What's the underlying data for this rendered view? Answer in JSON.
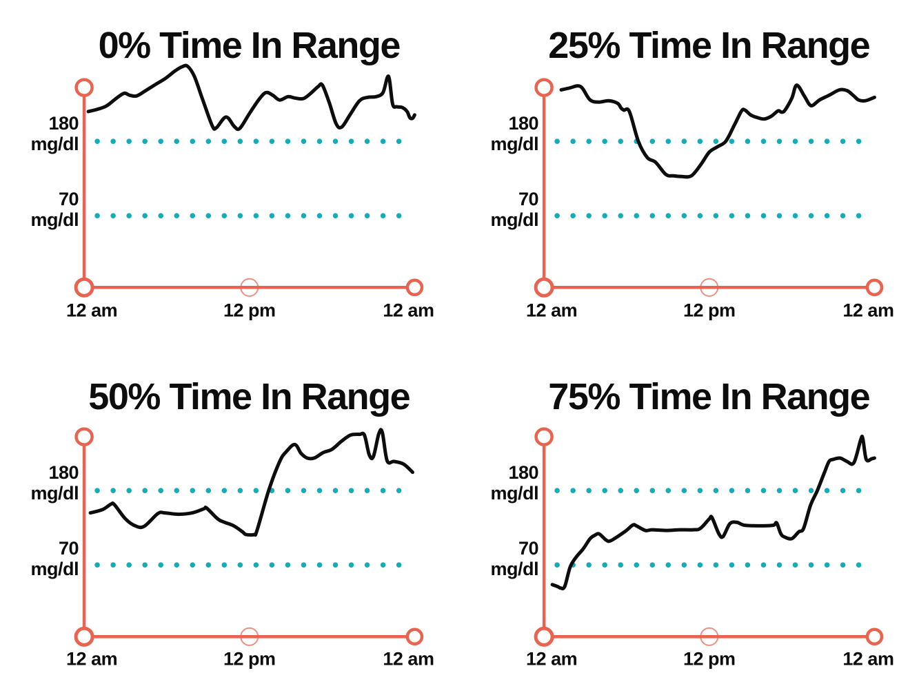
{
  "colors": {
    "background": "#FFFFFF",
    "axis": "#E96450",
    "threshold_dots": "#14ACB6",
    "glucose_line": "#0D0D0D",
    "text": "#0D0D0D"
  },
  "y_axis_unit": "mg/dl",
  "chart_data": [
    {
      "type": "line",
      "title": "0% Time In Range",
      "time_in_range_percent": 0,
      "x_tick_labels": [
        "12 am",
        "12 pm",
        "12 am"
      ],
      "x_range_hours": [
        0,
        24
      ],
      "y_threshold_labels": [
        {
          "value": "180",
          "unit": "mg/dl"
        },
        {
          "value": "70",
          "unit": "mg/dl"
        }
      ],
      "thresholds_mgdl": {
        "high": 180,
        "low": 70
      },
      "series": [
        {
          "name": "glucose",
          "unit": "mg/dl",
          "points": [
            [
              0.3,
              224
            ],
            [
              0.9,
              227
            ],
            [
              1.6,
              232
            ],
            [
              2.3,
              243
            ],
            [
              2.9,
              251
            ],
            [
              3.3,
              248
            ],
            [
              3.8,
              247
            ],
            [
              4.4,
              254
            ],
            [
              5.1,
              263
            ],
            [
              5.9,
              273
            ],
            [
              6.6,
              284
            ],
            [
              7.1,
              290
            ],
            [
              7.5,
              291
            ],
            [
              8.0,
              276
            ],
            [
              8.6,
              242
            ],
            [
              9.3,
              203
            ],
            [
              9.6,
              200
            ],
            [
              10.3,
              216
            ],
            [
              10.9,
              202
            ],
            [
              11.3,
              199
            ],
            [
              12.0,
              221
            ],
            [
              12.7,
              242
            ],
            [
              13.2,
              252
            ],
            [
              13.7,
              248
            ],
            [
              14.2,
              241
            ],
            [
              14.8,
              246
            ],
            [
              15.3,
              244
            ],
            [
              15.9,
              243
            ],
            [
              16.4,
              250
            ],
            [
              17.0,
              261
            ],
            [
              17.3,
              263
            ],
            [
              17.8,
              237
            ],
            [
              18.3,
              206
            ],
            [
              18.7,
              201
            ],
            [
              19.3,
              219
            ],
            [
              20.0,
              240
            ],
            [
              20.6,
              245
            ],
            [
              21.2,
              246
            ],
            [
              21.7,
              252
            ],
            [
              22.1,
              276
            ],
            [
              22.4,
              235
            ],
            [
              22.7,
              231
            ],
            [
              23.1,
              230
            ],
            [
              23.45,
              224
            ],
            [
              23.65,
              215
            ],
            [
              23.85,
              214
            ],
            [
              24,
              219
            ]
          ]
        }
      ]
    },
    {
      "type": "line",
      "title": "25% Time In Range",
      "time_in_range_percent": 25,
      "x_tick_labels": [
        "12 am",
        "12 pm",
        "12 am"
      ],
      "x_range_hours": [
        0,
        24
      ],
      "y_threshold_labels": [
        {
          "value": "180",
          "unit": "mg/dl"
        },
        {
          "value": "70",
          "unit": "mg/dl"
        }
      ],
      "thresholds_mgdl": {
        "high": 180,
        "low": 70
      },
      "series": [
        {
          "name": "glucose",
          "unit": "mg/dl",
          "points": [
            [
              1.25,
              256
            ],
            [
              1.9,
              259
            ],
            [
              2.45,
              262
            ],
            [
              2.8,
              258
            ],
            [
              3.35,
              241
            ],
            [
              4.0,
              238
            ],
            [
              4.7,
              240
            ],
            [
              5.35,
              236
            ],
            [
              5.6,
              229
            ],
            [
              5.8,
              226
            ],
            [
              6.2,
              224
            ],
            [
              6.85,
              180
            ],
            [
              7.5,
              156
            ],
            [
              8.1,
              149
            ],
            [
              8.85,
              131
            ],
            [
              9.4,
              129
            ],
            [
              10.0,
              128
            ],
            [
              10.7,
              129
            ],
            [
              11.4,
              146
            ],
            [
              12.0,
              164
            ],
            [
              12.6,
              172
            ],
            [
              13.2,
              180
            ],
            [
              13.8,
              203
            ],
            [
              14.35,
              225
            ],
            [
              14.6,
              226
            ],
            [
              15.0,
              219
            ],
            [
              15.5,
              215
            ],
            [
              16.0,
              213
            ],
            [
              16.5,
              217
            ],
            [
              17.0,
              225
            ],
            [
              17.25,
              223
            ],
            [
              17.5,
              226
            ],
            [
              18.0,
              244
            ],
            [
              18.35,
              263
            ],
            [
              18.9,
              247
            ],
            [
              19.25,
              235
            ],
            [
              19.5,
              233
            ],
            [
              20.0,
              241
            ],
            [
              20.7,
              248
            ],
            [
              21.45,
              256
            ],
            [
              22.0,
              255
            ],
            [
              22.5,
              247
            ],
            [
              22.85,
              241
            ],
            [
              23.35,
              240
            ],
            [
              24,
              245
            ]
          ]
        }
      ]
    },
    {
      "type": "line",
      "title": "50% Time In Range",
      "time_in_range_percent": 50,
      "x_tick_labels": [
        "12 am",
        "12 pm",
        "12 am"
      ],
      "x_range_hours": [
        0,
        24
      ],
      "y_threshold_labels": [
        {
          "value": "180",
          "unit": "mg/dl"
        },
        {
          "value": "70",
          "unit": "mg/dl"
        }
      ],
      "thresholds_mgdl": {
        "high": 180,
        "low": 70
      },
      "series": [
        {
          "name": "glucose",
          "unit": "mg/dl",
          "points": [
            [
              0.45,
              147
            ],
            [
              1.35,
              152
            ],
            [
              1.95,
              160
            ],
            [
              2.2,
              159
            ],
            [
              3.0,
              138
            ],
            [
              3.7,
              128
            ],
            [
              4.35,
              127
            ],
            [
              5.35,
              146
            ],
            [
              5.85,
              147
            ],
            [
              6.85,
              145
            ],
            [
              7.85,
              147
            ],
            [
              8.7,
              153
            ],
            [
              8.9,
              154
            ],
            [
              9.7,
              138
            ],
            [
              10.2,
              133
            ],
            [
              10.85,
              128
            ],
            [
              11.5,
              119
            ],
            [
              11.75,
              115
            ],
            [
              12.35,
              115
            ],
            [
              12.55,
              121
            ],
            [
              13.4,
              180
            ],
            [
              14.2,
              223
            ],
            [
              14.7,
              238
            ],
            [
              15.3,
              248
            ],
            [
              15.75,
              235
            ],
            [
              16.2,
              228
            ],
            [
              16.7,
              228
            ],
            [
              17.35,
              236
            ],
            [
              18.0,
              241
            ],
            [
              18.7,
              253
            ],
            [
              19.35,
              262
            ],
            [
              20.0,
              263
            ],
            [
              20.35,
              262
            ],
            [
              20.7,
              233
            ],
            [
              21.0,
              230
            ],
            [
              21.4,
              264
            ],
            [
              21.65,
              266
            ],
            [
              22.0,
              224
            ],
            [
              22.5,
              223
            ],
            [
              23.2,
              219
            ],
            [
              23.85,
              207
            ]
          ]
        }
      ]
    },
    {
      "type": "line",
      "title": "75% Time In Range",
      "time_in_range_percent": 75,
      "x_tick_labels": [
        "12 am",
        "12 pm",
        "12 am"
      ],
      "x_range_hours": [
        0,
        24
      ],
      "y_threshold_labels": [
        {
          "value": "180",
          "unit": "mg/dl"
        },
        {
          "value": "70",
          "unit": "mg/dl"
        }
      ],
      "thresholds_mgdl": {
        "high": 180,
        "low": 70
      },
      "series": [
        {
          "name": "glucose",
          "unit": "mg/dl",
          "points": [
            [
              0.6,
              41
            ],
            [
              1.0,
              38
            ],
            [
              1.2,
              36
            ],
            [
              1.5,
              38
            ],
            [
              1.9,
              67
            ],
            [
              2.35,
              82
            ],
            [
              2.85,
              94
            ],
            [
              3.35,
              109
            ],
            [
              3.7,
              114
            ],
            [
              4.0,
              116
            ],
            [
              4.5,
              107
            ],
            [
              4.85,
              106
            ],
            [
              5.85,
              119
            ],
            [
              6.45,
              129
            ],
            [
              6.7,
              128
            ],
            [
              7.35,
              121
            ],
            [
              7.85,
              122
            ],
            [
              8.85,
              121
            ],
            [
              9.85,
              122
            ],
            [
              10.85,
              122
            ],
            [
              11.35,
              124
            ],
            [
              12.0,
              138
            ],
            [
              12.2,
              140
            ],
            [
              12.7,
              116
            ],
            [
              13.0,
              112
            ],
            [
              13.5,
              131
            ],
            [
              14.0,
              133
            ],
            [
              14.5,
              129
            ],
            [
              15.2,
              128
            ],
            [
              16.2,
              128
            ],
            [
              16.7,
              129
            ],
            [
              16.9,
              132
            ],
            [
              17.2,
              116
            ],
            [
              17.5,
              111
            ],
            [
              18.0,
              109
            ],
            [
              18.5,
              119
            ],
            [
              18.85,
              124
            ],
            [
              19.35,
              158
            ],
            [
              19.85,
              180
            ],
            [
              20.35,
              206
            ],
            [
              20.7,
              223
            ],
            [
              21.0,
              226
            ],
            [
              21.5,
              228
            ],
            [
              22.0,
              223
            ],
            [
              22.5,
              221
            ],
            [
              23.0,
              255
            ],
            [
              23.15,
              257
            ],
            [
              23.4,
              226
            ],
            [
              23.8,
              227
            ],
            [
              24,
              228
            ]
          ]
        }
      ]
    }
  ]
}
